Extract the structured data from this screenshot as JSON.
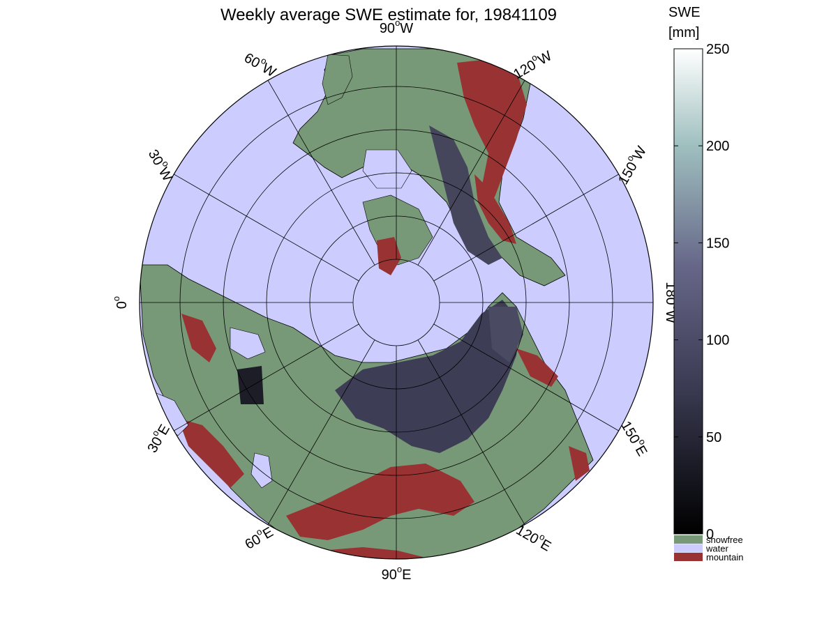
{
  "title": "Weekly average SWE estimate for, 19841109",
  "map": {
    "projection": "north-polar-stereographic",
    "lon_labels": [
      {
        "lon": 0,
        "main": "0",
        "sup": "o",
        "suffix": ""
      },
      {
        "lon": 30,
        "main": "30",
        "sup": "o",
        "suffix": "E"
      },
      {
        "lon": 60,
        "main": "60",
        "sup": "o",
        "suffix": "E"
      },
      {
        "lon": 90,
        "main": "90",
        "sup": "o",
        "suffix": "E"
      },
      {
        "lon": 120,
        "main": "120",
        "sup": "o",
        "suffix": "E"
      },
      {
        "lon": 150,
        "main": "150",
        "sup": "o",
        "suffix": "E"
      },
      {
        "lon": 180,
        "main": "180",
        "sup": "o",
        "suffix": "W"
      },
      {
        "lon": -150,
        "main": "150",
        "sup": "o",
        "suffix": "W"
      },
      {
        "lon": -120,
        "main": "120",
        "sup": "o",
        "suffix": "W"
      },
      {
        "lon": -90,
        "main": "90",
        "sup": "o",
        "suffix": "W"
      },
      {
        "lon": -60,
        "main": "60",
        "sup": "o",
        "suffix": "W"
      },
      {
        "lon": -30,
        "main": "30",
        "sup": "o",
        "suffix": "W"
      }
    ],
    "colors": {
      "water": "#ccccff",
      "snowfree": "#779977",
      "mountain": "#993333",
      "coast": "#000000"
    }
  },
  "colorbar": {
    "title_line1": "SWE",
    "title_line2": "[mm]",
    "ticks": [
      "0",
      "50",
      "100",
      "150",
      "200",
      "250"
    ],
    "range": [
      0,
      250
    ],
    "categories": [
      {
        "label": "snowfree",
        "color": "#779977"
      },
      {
        "label": "water",
        "color": "#ccccff"
      },
      {
        "label": "mountain",
        "color": "#993333"
      }
    ]
  }
}
